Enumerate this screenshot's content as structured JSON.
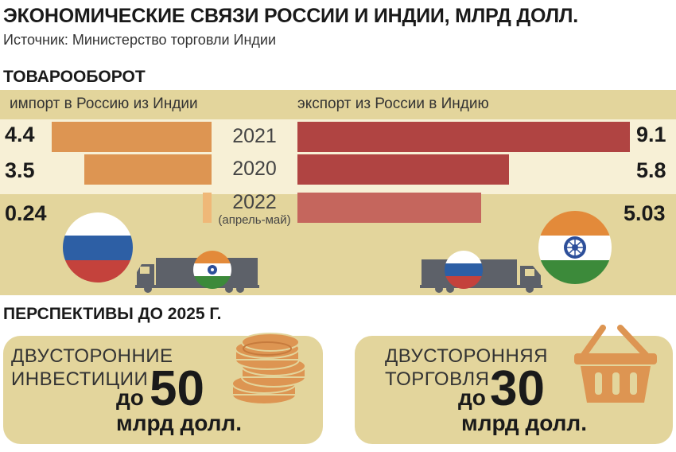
{
  "title": "ЭКОНОМИЧЕСКИЕ СВЯЗИ РОССИИ И ИНДИИ, МЛРД ДОЛЛ.",
  "source": "Источник: Министерство торговли Индии",
  "trade": {
    "heading": "ТОВАРООБОРОТ",
    "import_label": "импорт в Россию из Индии",
    "export_label": "экспорт из России в Индию"
  },
  "chart_data": {
    "type": "bar",
    "categories": [
      "2021",
      "2020",
      "2022"
    ],
    "category_notes": [
      "",
      "",
      "(апрель-май)"
    ],
    "series": [
      {
        "name": "импорт в Россию из Индии",
        "values": [
          4.4,
          3.5,
          0.24
        ],
        "labels": [
          "4.4",
          "3.5",
          "0.24"
        ],
        "color": "#dd9552"
      },
      {
        "name": "экспорт из России в Индию",
        "values": [
          9.1,
          5.8,
          5.03
        ],
        "labels": [
          "9.1",
          "5.8",
          "5.03"
        ],
        "color": "#b04442"
      }
    ],
    "xlim": [
      0,
      9.1
    ]
  },
  "colors": {
    "panel": "#e3d59c",
    "band": "#f7f0d6",
    "import_bar": "#dd9552",
    "import_bar_partial": "#efb878",
    "export_bar": "#b04442",
    "export_bar_partial": "#c5665d",
    "truck": "#5d6169"
  },
  "prospects": {
    "heading": "ПЕРСПЕКТИВЫ ДО 2025 Г.",
    "investment": {
      "line1": "ДВУСТОРОННИЕ",
      "line2": "ИНВЕСТИЦИИ",
      "prefix": "до",
      "value": "50",
      "unit": "млрд долл.",
      "icon": "coins-icon"
    },
    "trade": {
      "line1": "ДВУСТОРОННЯЯ",
      "line2": "ТОРГОВЛЯ",
      "prefix": "до",
      "value": "30",
      "unit": "млрд долл.",
      "icon": "basket-icon"
    }
  }
}
